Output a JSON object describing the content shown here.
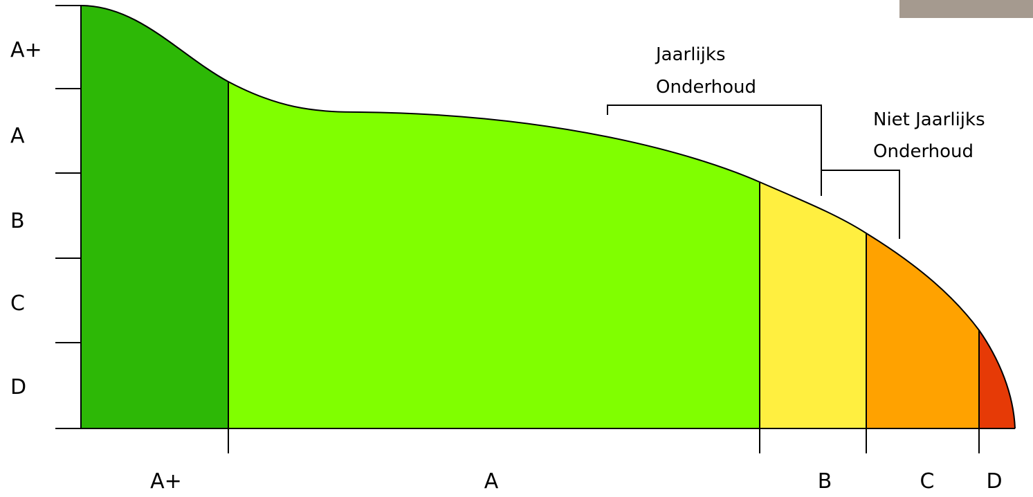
{
  "y_labels": [
    "A+",
    "A",
    "B",
    "C",
    "D"
  ],
  "x_labels": [
    "A+",
    "A",
    "B",
    "C",
    "D"
  ],
  "annotations": [
    {
      "lines": [
        "Jaarlijks",
        "Onderhoud"
      ]
    },
    {
      "lines": [
        "Niet Jaarlijks",
        "Onderhoud"
      ]
    }
  ]
}
